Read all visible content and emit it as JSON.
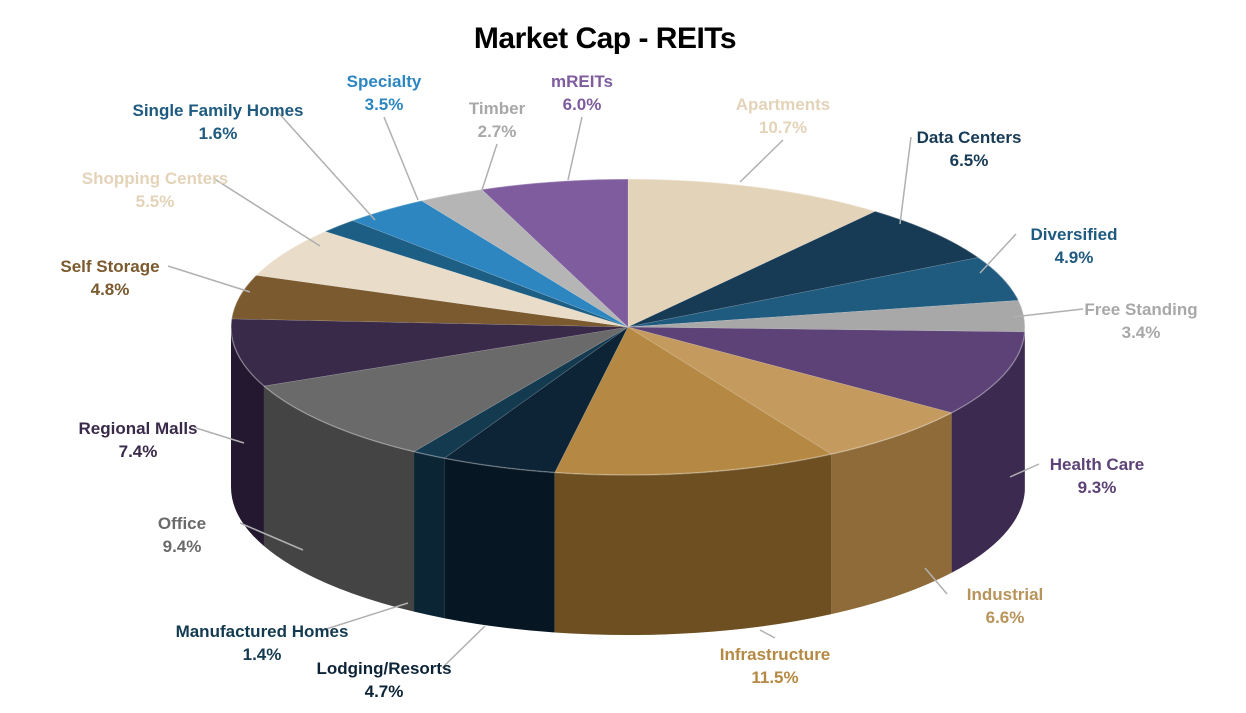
{
  "chart_data": {
    "type": "pie",
    "title": "Market Cap - REITs",
    "slices": [
      {
        "label": "Apartments",
        "pct_label": "10.7%",
        "value": 10.7,
        "color": "#E3D3B8",
        "side": "#B29F82",
        "text_color": "#E3D3B8"
      },
      {
        "label": "Data Centers",
        "pct_label": "6.5%",
        "value": 6.5,
        "color": "#173A55",
        "side": "#0E2638",
        "text_color": "#173A55"
      },
      {
        "label": "Diversified",
        "pct_label": "4.9%",
        "value": 4.9,
        "color": "#1F5A7F",
        "side": "#143D57",
        "text_color": "#1F5A7F"
      },
      {
        "label": "Free Standing",
        "pct_label": "3.4%",
        "value": 3.4,
        "color": "#A8A8A8",
        "side": "#7C7C7C",
        "text_color": "#A8A8A8"
      },
      {
        "label": "Health Care",
        "pct_label": "9.3%",
        "value": 9.3,
        "color": "#5C4276",
        "side": "#3D2A50",
        "text_color": "#5C4276"
      },
      {
        "label": "Industrial",
        "pct_label": "6.6%",
        "value": 6.6,
        "color": "#C49A5E",
        "side": "#8F6B3A",
        "text_color": "#B8935A"
      },
      {
        "label": "Infrastructure",
        "pct_label": "11.5%",
        "value": 11.5,
        "color": "#B58943",
        "side": "#6E4F22",
        "text_color": "#B58943"
      },
      {
        "label": "Lodging/Resorts",
        "pct_label": "4.7%",
        "value": 4.7,
        "color": "#0D2437",
        "side": "#061622",
        "text_color": "#0D2437"
      },
      {
        "label": "Manufactured Homes",
        "pct_label": "1.4%",
        "value": 1.4,
        "color": "#143A50",
        "side": "#0B2535",
        "text_color": "#143A50"
      },
      {
        "label": "Office",
        "pct_label": "9.4%",
        "value": 9.4,
        "color": "#6A6A6A",
        "side": "#444444",
        "text_color": "#6A6A6A"
      },
      {
        "label": "Regional Malls",
        "pct_label": "7.4%",
        "value": 7.4,
        "color": "#3A2A4A",
        "side": "#231830",
        "text_color": "#3A2A4A"
      },
      {
        "label": "Self Storage",
        "pct_label": "4.8%",
        "value": 4.8,
        "color": "#7A5A2E",
        "side": "#52391A",
        "text_color": "#7A5A2E"
      },
      {
        "label": "Shopping Centers",
        "pct_label": "5.5%",
        "value": 5.5,
        "color": "#E9DCC8",
        "side": "#B8A88F",
        "text_color": "#E3D3B8"
      },
      {
        "label": "Single Family Homes",
        "pct_label": "1.6%",
        "value": 1.6,
        "color": "#1D5E84",
        "side": "#123F5A",
        "text_color": "#1F5A7F"
      },
      {
        "label": "Specialty",
        "pct_label": "3.5%",
        "value": 3.5,
        "color": "#2E86C1",
        "side": "#1E5F8A",
        "text_color": "#2E86C1"
      },
      {
        "label": "Timber",
        "pct_label": "2.7%",
        "value": 2.7,
        "color": "#B5B5B5",
        "side": "#888888",
        "text_color": "#A8A8A8"
      },
      {
        "label": "mREITs",
        "pct_label": "6.0%",
        "value": 6.0,
        "color": "#7E5C9E",
        "side": "#583F70",
        "text_color": "#7E5C9E"
      }
    ]
  }
}
